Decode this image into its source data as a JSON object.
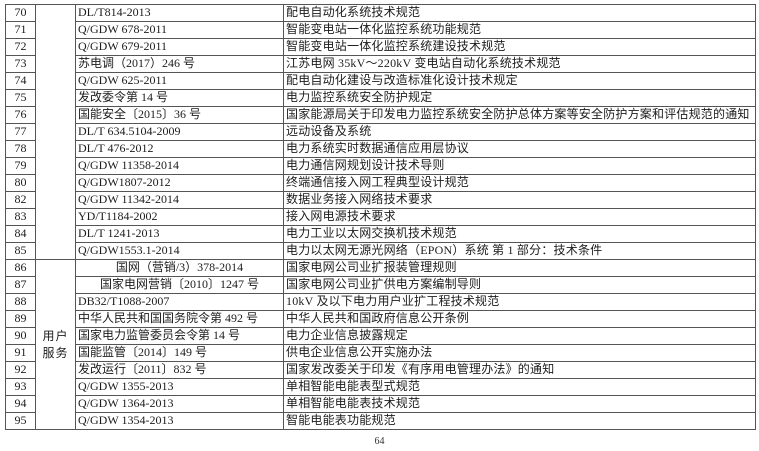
{
  "page": {
    "number": "64"
  },
  "table": {
    "category_groups": [
      {
        "start_num": "70",
        "rowspan": 15,
        "label_lines": []
      },
      {
        "start_num": "86",
        "rowspan": 10,
        "label_lines": [
          "用户",
          "服务"
        ]
      }
    ],
    "rows": [
      {
        "num": "70",
        "code": "DL/T814-2013",
        "name": "配电自动化系统技术规范"
      },
      {
        "num": "71",
        "code": "Q/GDW 678-2011",
        "name": "智能变电站一体化监控系统功能规范"
      },
      {
        "num": "72",
        "code": "Q/GDW 679-2011",
        "name": "智能变电站一体化监控系统建设技术规范"
      },
      {
        "num": "73",
        "code": "苏电调（2017）246 号",
        "name": "江苏电网 35kV～220kV 变电站自动化系统技术规范"
      },
      {
        "num": "74",
        "code": "Q/GDW 625-2011",
        "name": "配电自动化建设与改造标准化设计技术规定"
      },
      {
        "num": "75",
        "code": "发改委令第 14 号",
        "name": "电力监控系统安全防护规定"
      },
      {
        "num": "76",
        "code": "国能安全〔2015〕36 号",
        "name": "国家能源局关于印发电力监控系统安全防护总体方案等安全防护方案和评估规范的通知"
      },
      {
        "num": "77",
        "code": "DL/T 634.5104-2009",
        "name": "远动设备及系统"
      },
      {
        "num": "78",
        "code": "DL/T 476-2012",
        "name": "电力系统实时数据通信应用层协议"
      },
      {
        "num": "79",
        "code": "Q/GDW 11358-2014",
        "name": "电力通信网规划设计技术导则"
      },
      {
        "num": "80",
        "code": "Q/GDW1807-2012",
        "name": "终端通信接入网工程典型设计规范"
      },
      {
        "num": "82",
        "code": "Q/GDW 11342-2014",
        "name": "数据业务接入网络技术要求"
      },
      {
        "num": "83",
        "code": "YD/T1184-2002",
        "name": "接入网电源技术要求"
      },
      {
        "num": "84",
        "code": "DL/T 1241-2013",
        "name": "电力工业以太网交换机技术规范"
      },
      {
        "num": "85",
        "code": "Q/GDW1553.1-2014",
        "name": "电力以太网无源光网络（EPON）系统 第 1 部分：技术条件"
      },
      {
        "num": "86",
        "code": "国网（营销/3）378-2014",
        "code_centered": true,
        "name": "国家电网公司业扩报装管理规则"
      },
      {
        "num": "87",
        "code": "国家电网营销〔2010〕1247 号",
        "code_centered": true,
        "name": "国家电网公司业扩供电方案编制导则"
      },
      {
        "num": "88",
        "code": "DB32/T1088-2007",
        "name": "10kV 及以下电力用户业扩工程技术规范"
      },
      {
        "num": "89",
        "code": "中华人民共和国国务院令第 492 号",
        "name": "中华人民共和国政府信息公开条例"
      },
      {
        "num": "90",
        "code": "国家电力监管委员会令第 14 号",
        "name": "电力企业信息披露规定"
      },
      {
        "num": "91",
        "code": "国能监管〔2014〕149 号",
        "name": "供电企业信息公开实施办法"
      },
      {
        "num": "92",
        "code": "发改运行〔2011〕832 号",
        "name": "国家发改委关于印发《有序用电管理办法》的通知"
      },
      {
        "num": "93",
        "code": "Q/GDW 1355-2013",
        "name": "单相智能电能表型式规范"
      },
      {
        "num": "94",
        "code": "Q/GDW 1364-2013",
        "name": "单相智能电能表技术规范"
      },
      {
        "num": "95",
        "code": "Q/GDW 1354-2013",
        "name": "智能电能表功能规范"
      }
    ]
  }
}
